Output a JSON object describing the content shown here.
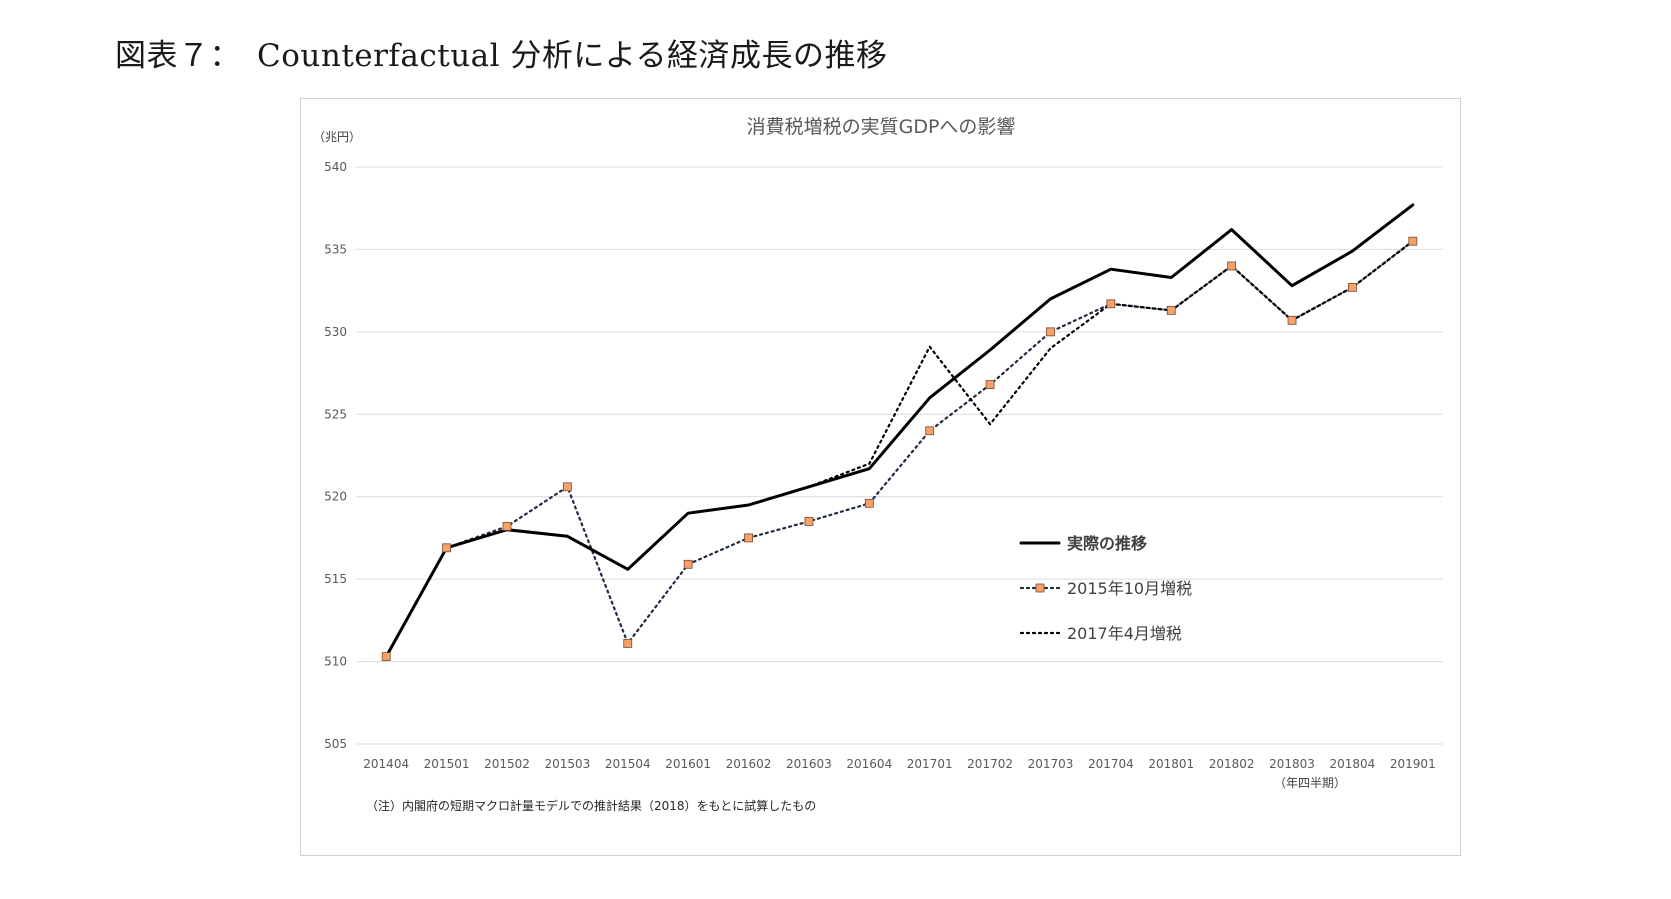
{
  "figure_title": "図表７：　Counterfactual 分析による経済成長の推移",
  "chart_data": {
    "type": "line",
    "title": "消費税増税の実質GDPへの影響",
    "yunit": "（兆円）",
    "xunit": "（年四半期）",
    "note": "（注）内閣府の短期マクロ計量モデルでの推計結果（2018）をもとに試算したもの",
    "ylim": [
      505,
      540
    ],
    "yticks": [
      505,
      510,
      515,
      520,
      525,
      530,
      535,
      540
    ],
    "grid": true,
    "legend_position": "right-middle",
    "categories": [
      "201404",
      "201501",
      "201502",
      "201503",
      "201504",
      "201601",
      "201602",
      "201603",
      "201604",
      "201701",
      "201702",
      "201703",
      "201704",
      "201801",
      "201802",
      "201803",
      "201804",
      "201901"
    ],
    "series": [
      {
        "name": "実際の推移",
        "style": "solid",
        "color": "#000000",
        "values": [
          510.3,
          516.9,
          518.0,
          517.6,
          515.6,
          519.0,
          519.5,
          520.6,
          521.7,
          526.0,
          528.9,
          532.0,
          533.8,
          533.3,
          536.2,
          532.8,
          534.9,
          537.7
        ]
      },
      {
        "name": "2015年10月増税",
        "style": "dotted-marker",
        "color": "#1f2a44",
        "marker_color": "#f4a26a",
        "values": [
          510.3,
          516.9,
          518.2,
          520.6,
          511.1,
          515.9,
          517.5,
          518.5,
          519.6,
          524.0,
          526.8,
          530.0,
          531.7,
          531.3,
          534.0,
          530.7,
          532.7,
          535.5
        ]
      },
      {
        "name": "2017年4月増税",
        "style": "dotted",
        "color": "#000000",
        "values": [
          510.3,
          516.9,
          518.0,
          517.6,
          515.6,
          519.0,
          519.5,
          520.6,
          522.0,
          529.1,
          524.4,
          529.0,
          531.7,
          531.3,
          534.0,
          530.7,
          532.7,
          535.5
        ]
      }
    ]
  }
}
